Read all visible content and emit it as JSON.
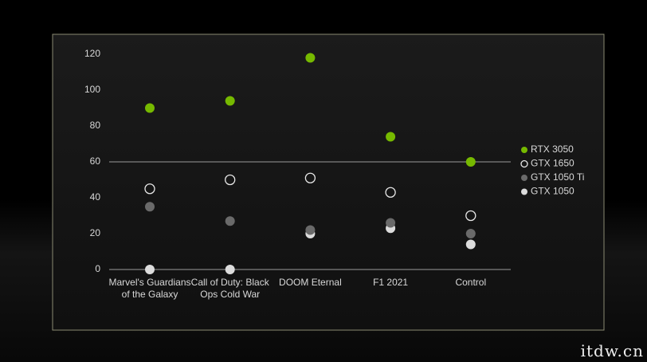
{
  "chart_data": {
    "type": "dot",
    "categories": [
      "Marvel's Guardians of the Galaxy",
      "Call of Duty: Black Ops Cold War",
      "DOOM Eternal",
      "F1 2021",
      "Control"
    ],
    "series": [
      {
        "name": "RTX 3050",
        "color": "#76b900",
        "marker": "filled",
        "values": [
          90,
          94,
          118,
          74,
          60
        ]
      },
      {
        "name": "GTX 1650",
        "color": "#e8e8e8",
        "marker": "hollow",
        "values": [
          45,
          50,
          51,
          43,
          30
        ]
      },
      {
        "name": "GTX 1050 Ti",
        "color": "#6a6a6a",
        "marker": "filled",
        "values": [
          35,
          27,
          22,
          26,
          20
        ]
      },
      {
        "name": "GTX 1050",
        "color": "#dcdcdc",
        "marker": "filled",
        "values": [
          0,
          0,
          20,
          23,
          14
        ]
      }
    ],
    "ylim": [
      0,
      120
    ],
    "yticks": [
      0,
      20,
      40,
      60,
      80,
      100,
      120
    ],
    "reference_line": 60,
    "legend": "right"
  },
  "watermark": "itdw.cn"
}
